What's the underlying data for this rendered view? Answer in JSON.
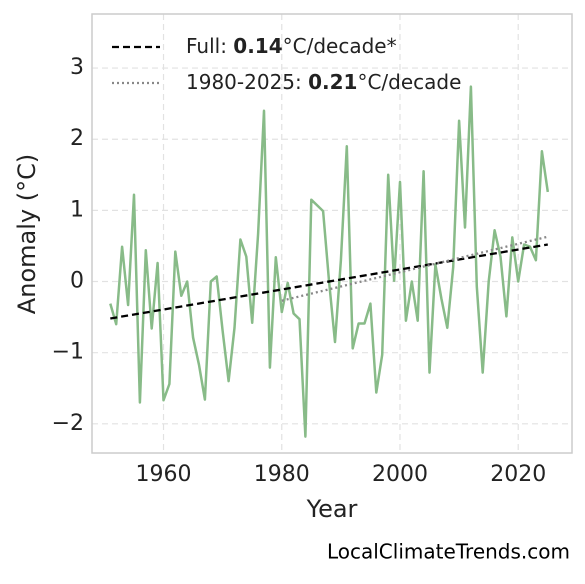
{
  "chart_data": {
    "type": "line",
    "xlabel": "Year",
    "ylabel": "Anomaly (°C)",
    "source": "LocalClimateTrends.com",
    "x": [
      1951,
      1952,
      1953,
      1954,
      1955,
      1956,
      1957,
      1958,
      1959,
      1960,
      1961,
      1962,
      1963,
      1964,
      1965,
      1966,
      1967,
      1968,
      1969,
      1970,
      1971,
      1972,
      1973,
      1974,
      1975,
      1976,
      1977,
      1978,
      1979,
      1980,
      1981,
      1982,
      1983,
      1984,
      1985,
      1986,
      1987,
      1988,
      1989,
      1990,
      1991,
      1992,
      1993,
      1994,
      1995,
      1996,
      1997,
      1998,
      1999,
      2000,
      2001,
      2002,
      2003,
      2004,
      2005,
      2006,
      2007,
      2008,
      2009,
      2010,
      2011,
      2012,
      2013,
      2014,
      2015,
      2016,
      2017,
      2018,
      2019,
      2020,
      2021,
      2022,
      2023,
      2024,
      2025
    ],
    "series": [
      {
        "color": "#88bb88",
        "values": [
          -0.31,
          -0.6,
          0.49,
          -0.33,
          1.22,
          -1.7,
          0.44,
          -0.66,
          0.26,
          -1.67,
          -1.44,
          0.42,
          -0.2,
          0.0,
          -0.79,
          -1.17,
          -1.66,
          0.0,
          0.07,
          -0.69,
          -1.4,
          -0.65,
          0.59,
          0.35,
          -0.58,
          0.67,
          2.4,
          -1.21,
          0.34,
          -0.43,
          -0.02,
          -0.45,
          -0.53,
          -2.18,
          1.15,
          1.07,
          0.99,
          0.01,
          -0.85,
          0.3,
          1.9,
          -0.94,
          -0.59,
          -0.59,
          -0.31,
          -1.56,
          -1.03,
          1.5,
          0.01,
          1.4,
          -0.55,
          0.0,
          -0.55,
          1.55,
          -1.28,
          0.24,
          -0.24,
          -0.65,
          0.2,
          2.26,
          0.76,
          2.74,
          -0.07,
          -1.28,
          0.0,
          0.72,
          0.35,
          -0.49,
          0.62,
          0.0,
          0.52,
          0.49,
          0.3,
          1.83,
          1.26
        ]
      }
    ],
    "trends": [
      {
        "prefix": "Full: ",
        "rate": 0.14,
        "suffix": "°C/decade*",
        "color": "#000000",
        "dash": "dashed",
        "x": [
          1951,
          2025
        ],
        "values": [
          -0.52,
          0.52
        ]
      },
      {
        "prefix": "1980-2025: ",
        "rate": 0.21,
        "suffix": "°C/decade",
        "color": "#888888",
        "dash": "dotted",
        "x": [
          1980,
          2025
        ],
        "values": [
          -0.27,
          0.63
        ]
      }
    ],
    "xlim": [
      1947.9,
      2029.1
    ],
    "ylim": [
      -2.41,
      3.76
    ],
    "xticks": [
      1960,
      1980,
      2000,
      2020
    ],
    "yticks": [
      {
        "value": -2,
        "label": "−2"
      },
      {
        "value": -1,
        "label": "−1"
      },
      0,
      1,
      2,
      3
    ],
    "grid": true,
    "legend": "upper left"
  }
}
